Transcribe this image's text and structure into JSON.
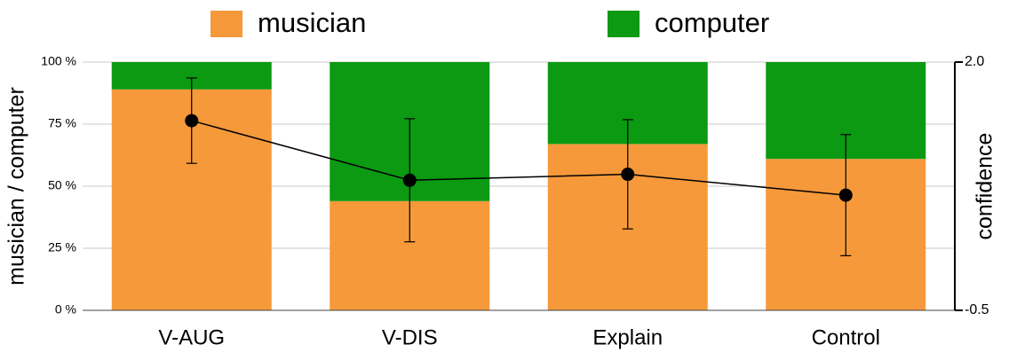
{
  "chart_data": {
    "type": "bar",
    "stacked": true,
    "categories": [
      "V-AUG",
      "V-DIS",
      "Explain",
      "Control"
    ],
    "series": [
      {
        "name": "musician",
        "color": "#f5993a",
        "values": [
          89,
          44,
          67,
          61
        ]
      },
      {
        "name": "computer",
        "color": "#0b9a12",
        "values": [
          11,
          56,
          33,
          39
        ]
      },
      {
        "type": "line",
        "axis": "y2",
        "color": "#000000",
        "values": [
          1.41,
          0.81,
          0.87,
          0.66
        ],
        "errors": [
          0.43,
          0.62,
          0.55,
          0.61
        ]
      }
    ],
    "ylabel": "musician / computer",
    "y2label": "confidence",
    "ylim": [
      0,
      100
    ],
    "yticks": [
      {
        "value": 0,
        "label": "0 %"
      },
      {
        "value": 25,
        "label": "25 %"
      },
      {
        "value": 50,
        "label": "50 %"
      },
      {
        "value": 75,
        "label": "75 %"
      },
      {
        "value": 100,
        "label": "100 %"
      }
    ],
    "y2lim": [
      -0.5,
      2.0
    ],
    "y2ticks": [
      -0.5,
      {
        "value": 2.0,
        "label": "2.0"
      }
    ],
    "grid": true,
    "legend": "top"
  }
}
